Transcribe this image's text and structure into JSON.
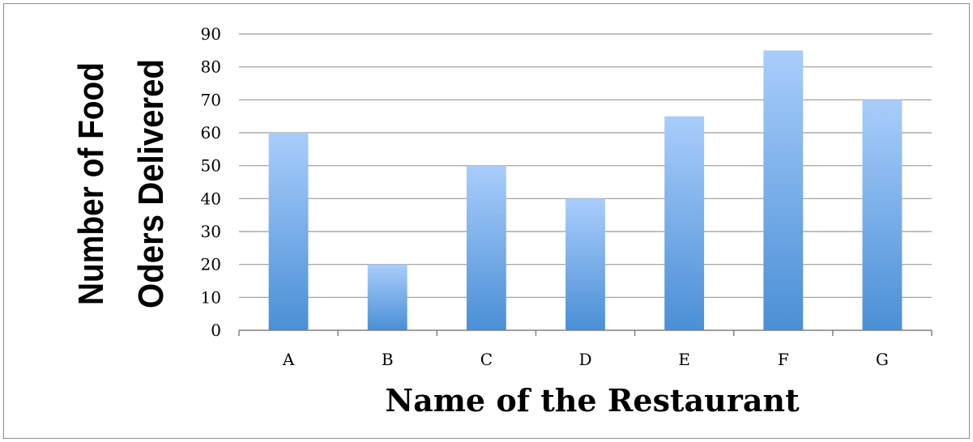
{
  "chart_data": {
    "type": "bar",
    "categories": [
      "A",
      "B",
      "C",
      "D",
      "E",
      "F",
      "G"
    ],
    "values": [
      60,
      20,
      50,
      40,
      65,
      85,
      70
    ],
    "title": "",
    "xlabel": "Name of the Restaurant",
    "ylabel_lines": [
      "Number of Food",
      "Oders Delivered"
    ],
    "ylim": [
      0,
      90
    ],
    "yticks": [
      "0",
      "10",
      "20",
      "30",
      "40",
      "50",
      "60",
      "70",
      "80",
      "90"
    ],
    "grid": true,
    "legend": "none",
    "colors": {
      "bar_top": "#a9cdfb",
      "bar_bottom": "#4a8fd6",
      "grid": "#9a9a9a",
      "axis": "#808080"
    }
  }
}
